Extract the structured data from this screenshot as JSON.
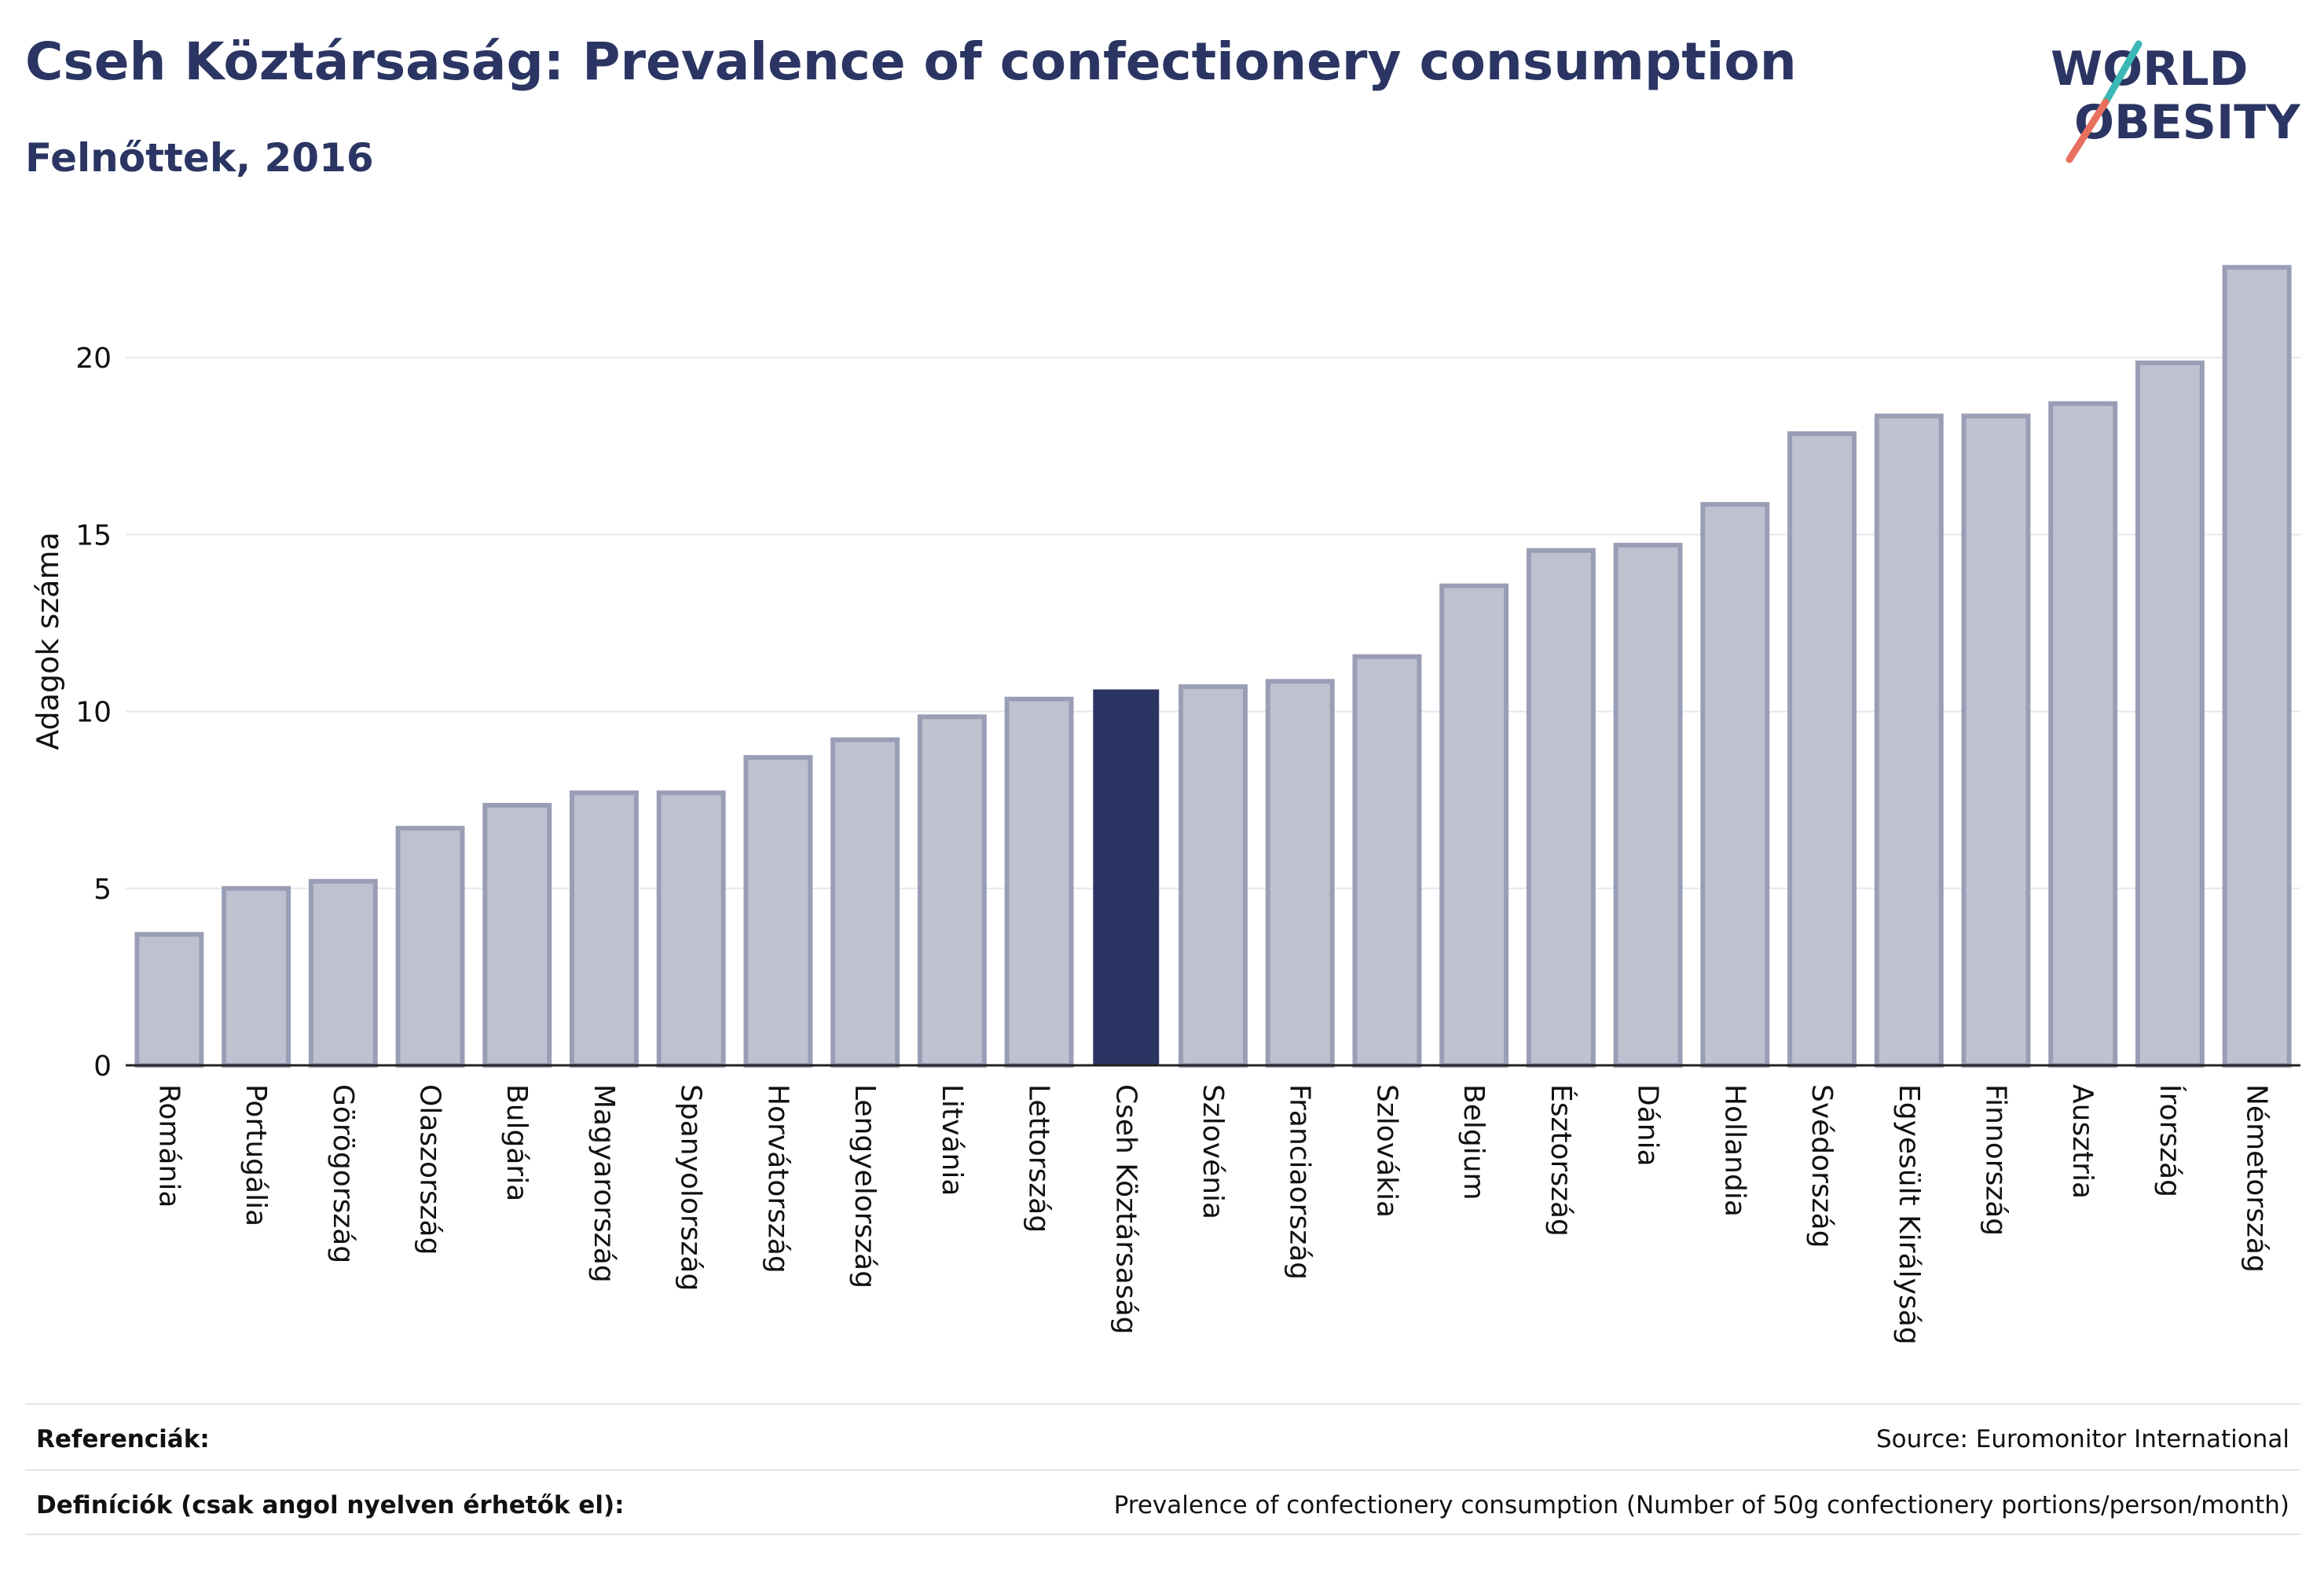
{
  "header": {
    "title": "Cseh Köztársaság: Prevalence of confectionery consumption",
    "subtitle": "Felnőttek, 2016"
  },
  "logo": {
    "line1": "WORLD",
    "line2": "OBESITY",
    "accent_teal": "#3bb8b6",
    "accent_coral": "#e8705f",
    "text_color": "#2b3563"
  },
  "colors": {
    "bar_fill": "#bec1cf",
    "bar_stroke": "#9a9eb5",
    "highlight": "#2b3563",
    "grid": "#e6e7ee",
    "axis": "#222222"
  },
  "chart_data": {
    "type": "bar",
    "title": "",
    "xlabel": "",
    "ylabel": "Adagok száma",
    "ylim": [
      0,
      23
    ],
    "yticks": [
      0,
      5,
      10,
      15,
      20
    ],
    "grid": true,
    "highlight": "Cseh Köztársaság",
    "categories": [
      "Románia",
      "Portugália",
      "Görögország",
      "Olaszország",
      "Bulgária",
      "Magyarország",
      "Spanyolország",
      "Horvátország",
      "Lengyelország",
      "Litvánia",
      "Lettország",
      "Cseh Köztársaság",
      "Szlovénia",
      "Franciaország",
      "Szlovákia",
      "Belgium",
      "Észtország",
      "Dánia",
      "Hollandia",
      "Svédország",
      "Egyesült Királyság",
      "Finnország",
      "Ausztria",
      "Írország",
      "Németország"
    ],
    "values": [
      3.7,
      5.0,
      5.2,
      6.7,
      7.35,
      7.7,
      7.7,
      8.7,
      9.2,
      9.85,
      10.35,
      10.6,
      10.7,
      10.85,
      11.55,
      13.55,
      14.55,
      14.7,
      15.85,
      17.85,
      18.35,
      18.35,
      18.7,
      19.85,
      22.55
    ]
  },
  "footer": {
    "references_label": "Referenciák:",
    "references_value": "Source: Euromonitor International",
    "definitions_label": "Definíciók (csak angol nyelven érhetők el):",
    "definitions_value": "Prevalence of confectionery consumption (Number of 50g confectionery portions/person/month)"
  }
}
